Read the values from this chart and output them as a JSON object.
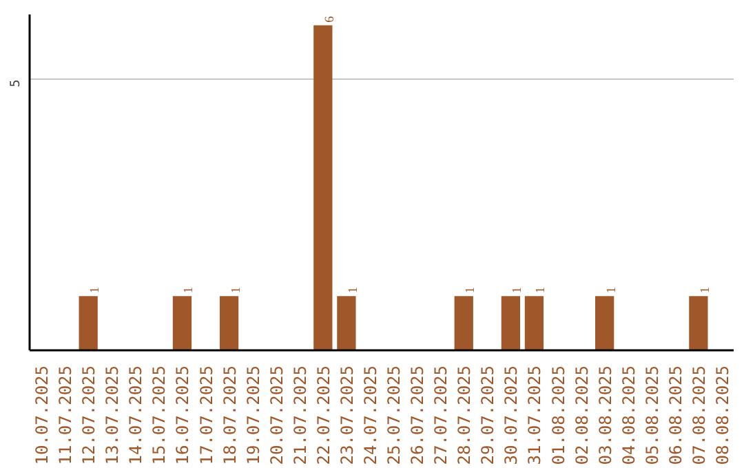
{
  "chart_data": {
    "type": "bar",
    "categories": [
      "10.07.2025",
      "11.07.2025",
      "12.07.2025",
      "13.07.2025",
      "14.07.2025",
      "15.07.2025",
      "16.07.2025",
      "17.07.2025",
      "18.07.2025",
      "19.07.2025",
      "20.07.2025",
      "21.07.2025",
      "22.07.2025",
      "23.07.2025",
      "24.07.2025",
      "25.07.2025",
      "26.07.2025",
      "27.07.2025",
      "28.07.2025",
      "29.07.2025",
      "30.07.2025",
      "31.07.2025",
      "01.08.2025",
      "02.08.2025",
      "03.08.2025",
      "04.08.2025",
      "05.08.2025",
      "06.08.2025",
      "07.08.2025",
      "08.08.2025"
    ],
    "values": [
      0,
      0,
      1,
      0,
      0,
      0,
      1,
      0,
      1,
      0,
      0,
      0,
      6,
      1,
      0,
      0,
      0,
      0,
      1,
      0,
      1,
      1,
      0,
      0,
      1,
      0,
      0,
      0,
      1,
      0
    ],
    "value_labels": [
      null,
      null,
      "1",
      null,
      null,
      null,
      "1",
      null,
      "1",
      null,
      null,
      null,
      "6",
      "1",
      null,
      null,
      null,
      null,
      "1",
      null,
      "1",
      "1",
      null,
      null,
      "1",
      null,
      null,
      null,
      "1",
      null
    ],
    "color": "#a0572a",
    "ylim": [
      0,
      6.2
    ],
    "yticks": [
      5
    ],
    "grid": "y"
  }
}
